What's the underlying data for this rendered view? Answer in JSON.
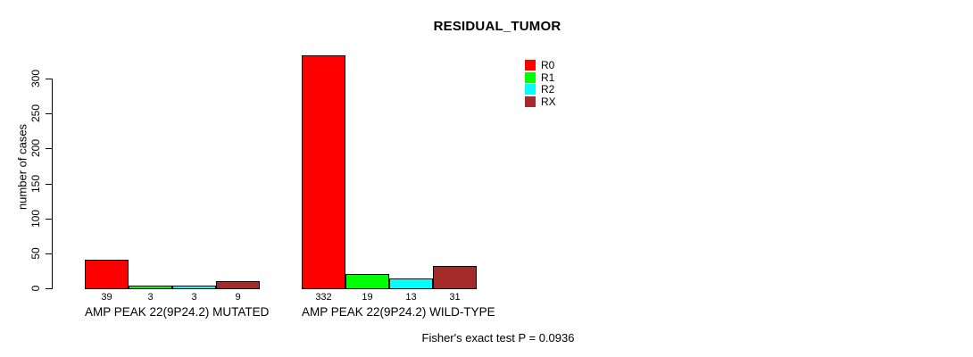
{
  "chart_data": {
    "type": "bar",
    "title": "RESIDUAL_TUMOR",
    "xlabel": "",
    "ylabel": "number of cases",
    "categories": [
      "AMP PEAK 22(9P24.2) MUTATED",
      "AMP PEAK 22(9P24.2) WILD-TYPE"
    ],
    "series": [
      {
        "name": "R0",
        "color": "#ff0000",
        "values": [
          39,
          332
        ]
      },
      {
        "name": "R1",
        "color": "#00ff00",
        "values": [
          3,
          19
        ]
      },
      {
        "name": "R2",
        "color": "#00ffff",
        "values": [
          3,
          13
        ]
      },
      {
        "name": "RX",
        "color": "#a52a2a",
        "values": [
          9,
          31
        ]
      }
    ],
    "bar_value_labels": [
      [
        "39",
        "3",
        "3",
        "9"
      ],
      [
        "332",
        "19",
        "13",
        "31"
      ]
    ],
    "yticks": [
      0,
      50,
      100,
      150,
      200,
      250,
      300
    ],
    "ylim": [
      0,
      335
    ],
    "grid": false,
    "legend_position": "top-right",
    "legend_entries": [
      "R0",
      "R1",
      "R2",
      "RX"
    ],
    "annotation": "Fisher's exact test P = 0.0936",
    "axis_color": "#000000",
    "bar_border_color": "#000000"
  }
}
